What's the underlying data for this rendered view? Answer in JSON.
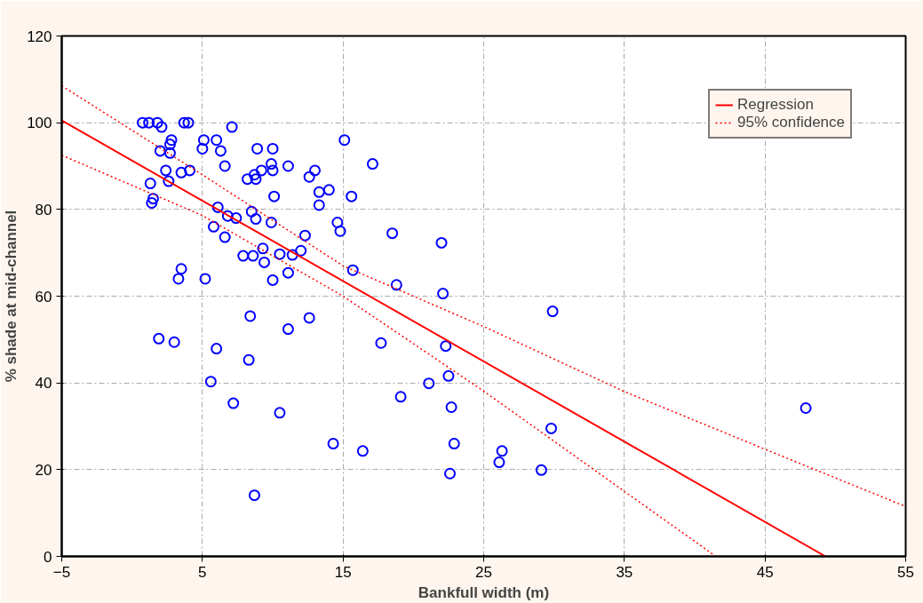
{
  "chart_data": {
    "type": "scatter",
    "xlabel": "Bankfull width (m)",
    "ylabel": "% shade at mid-channel",
    "xlim": [
      -5,
      55
    ],
    "xticks": [
      -5,
      5,
      15,
      25,
      35,
      45,
      55
    ],
    "ylim": [
      0,
      120
    ],
    "yticks": [
      0,
      20,
      40,
      60,
      80,
      100,
      120
    ],
    "grid": true,
    "legend": "top right",
    "marker": "circle",
    "series": [
      {
        "color": "#0000ff",
        "x": [
          0.75,
          1.2,
          1.8,
          2.1,
          3.7,
          4.0,
          7.1,
          15.1,
          2.8,
          2.7,
          5.1,
          6.0,
          5.0,
          2.0,
          2.7,
          6.3,
          8.9,
          10.0,
          6.6,
          9.9,
          10.0,
          2.4,
          3.5,
          4.1,
          9.2,
          11.1,
          13.0,
          17.1,
          2.6,
          8.2,
          8.7,
          12.6,
          8.8,
          1.3,
          13.3,
          14.0,
          10.1,
          15.6,
          1.5,
          1.4,
          6.1,
          13.3,
          8.5,
          6.8,
          7.4,
          8.8,
          9.9,
          14.6,
          5.8,
          14.8,
          18.5,
          12.3,
          6.6,
          22.0,
          9.3,
          12.0,
          7.9,
          8.6,
          10.5,
          11.4,
          9.4,
          3.5,
          15.7,
          3.3,
          5.2,
          10.0,
          11.1,
          18.8,
          22.1,
          29.9,
          8.4,
          12.6,
          11.1,
          1.9,
          3.0,
          17.7,
          22.3,
          6.0,
          8.3,
          22.5,
          5.6,
          21.1,
          19.1,
          7.2,
          22.7,
          47.9,
          10.5,
          29.8,
          14.3,
          22.9,
          26.3,
          16.4,
          26.1,
          29.1,
          22.6,
          8.7
        ],
        "values": [
          100,
          100,
          100,
          99,
          100,
          100,
          99,
          96,
          96,
          95,
          96,
          96,
          94,
          93.5,
          93,
          93.5,
          94,
          94,
          90,
          90.5,
          89,
          89,
          88.5,
          89,
          89,
          90,
          89,
          90.5,
          86.5,
          87,
          88,
          87.5,
          87,
          86,
          84,
          84.5,
          83,
          83,
          82.5,
          81.5,
          80.5,
          81,
          79.5,
          78.5,
          78,
          77.8,
          77,
          77,
          76,
          75,
          74.5,
          74,
          73.6,
          72.3,
          71,
          70.5,
          69.3,
          69.3,
          69.7,
          69.5,
          67.8,
          66.3,
          66,
          64,
          64,
          63.7,
          65.4,
          62.6,
          60.6,
          56.5,
          55.4,
          55,
          52.4,
          50.2,
          49.4,
          49.2,
          48.5,
          47.9,
          45.3,
          41.6,
          40.3,
          39.9,
          36.8,
          35.3,
          34.4,
          34.2,
          33.1,
          29.5,
          26,
          26,
          24.3,
          24.3,
          21.7,
          19.9,
          19.1,
          14.1
        ]
      },
      {
        "type": "line",
        "name": "Regression",
        "color": "#ff0000",
        "line_style": "solid",
        "marker": "none",
        "x": [
          -5,
          49.3
        ],
        "values": [
          100.5,
          0
        ]
      },
      {
        "type": "line",
        "name": "95% confidence",
        "color": "#ff0000",
        "line_style": "dotted",
        "marker": "none",
        "x": [
          -5,
          5,
          15,
          25,
          35,
          45,
          55
        ],
        "values": [
          108.5,
          88,
          67,
          53,
          38,
          24.7,
          11.5
        ]
      },
      {
        "type": "line",
        "color": "#ff0000",
        "line_style": "dotted",
        "marker": "none",
        "x": [
          -5,
          5,
          15,
          25,
          35,
          41.5
        ],
        "values": [
          92.5,
          78.6,
          60,
          38.1,
          15,
          0
        ]
      }
    ]
  }
}
